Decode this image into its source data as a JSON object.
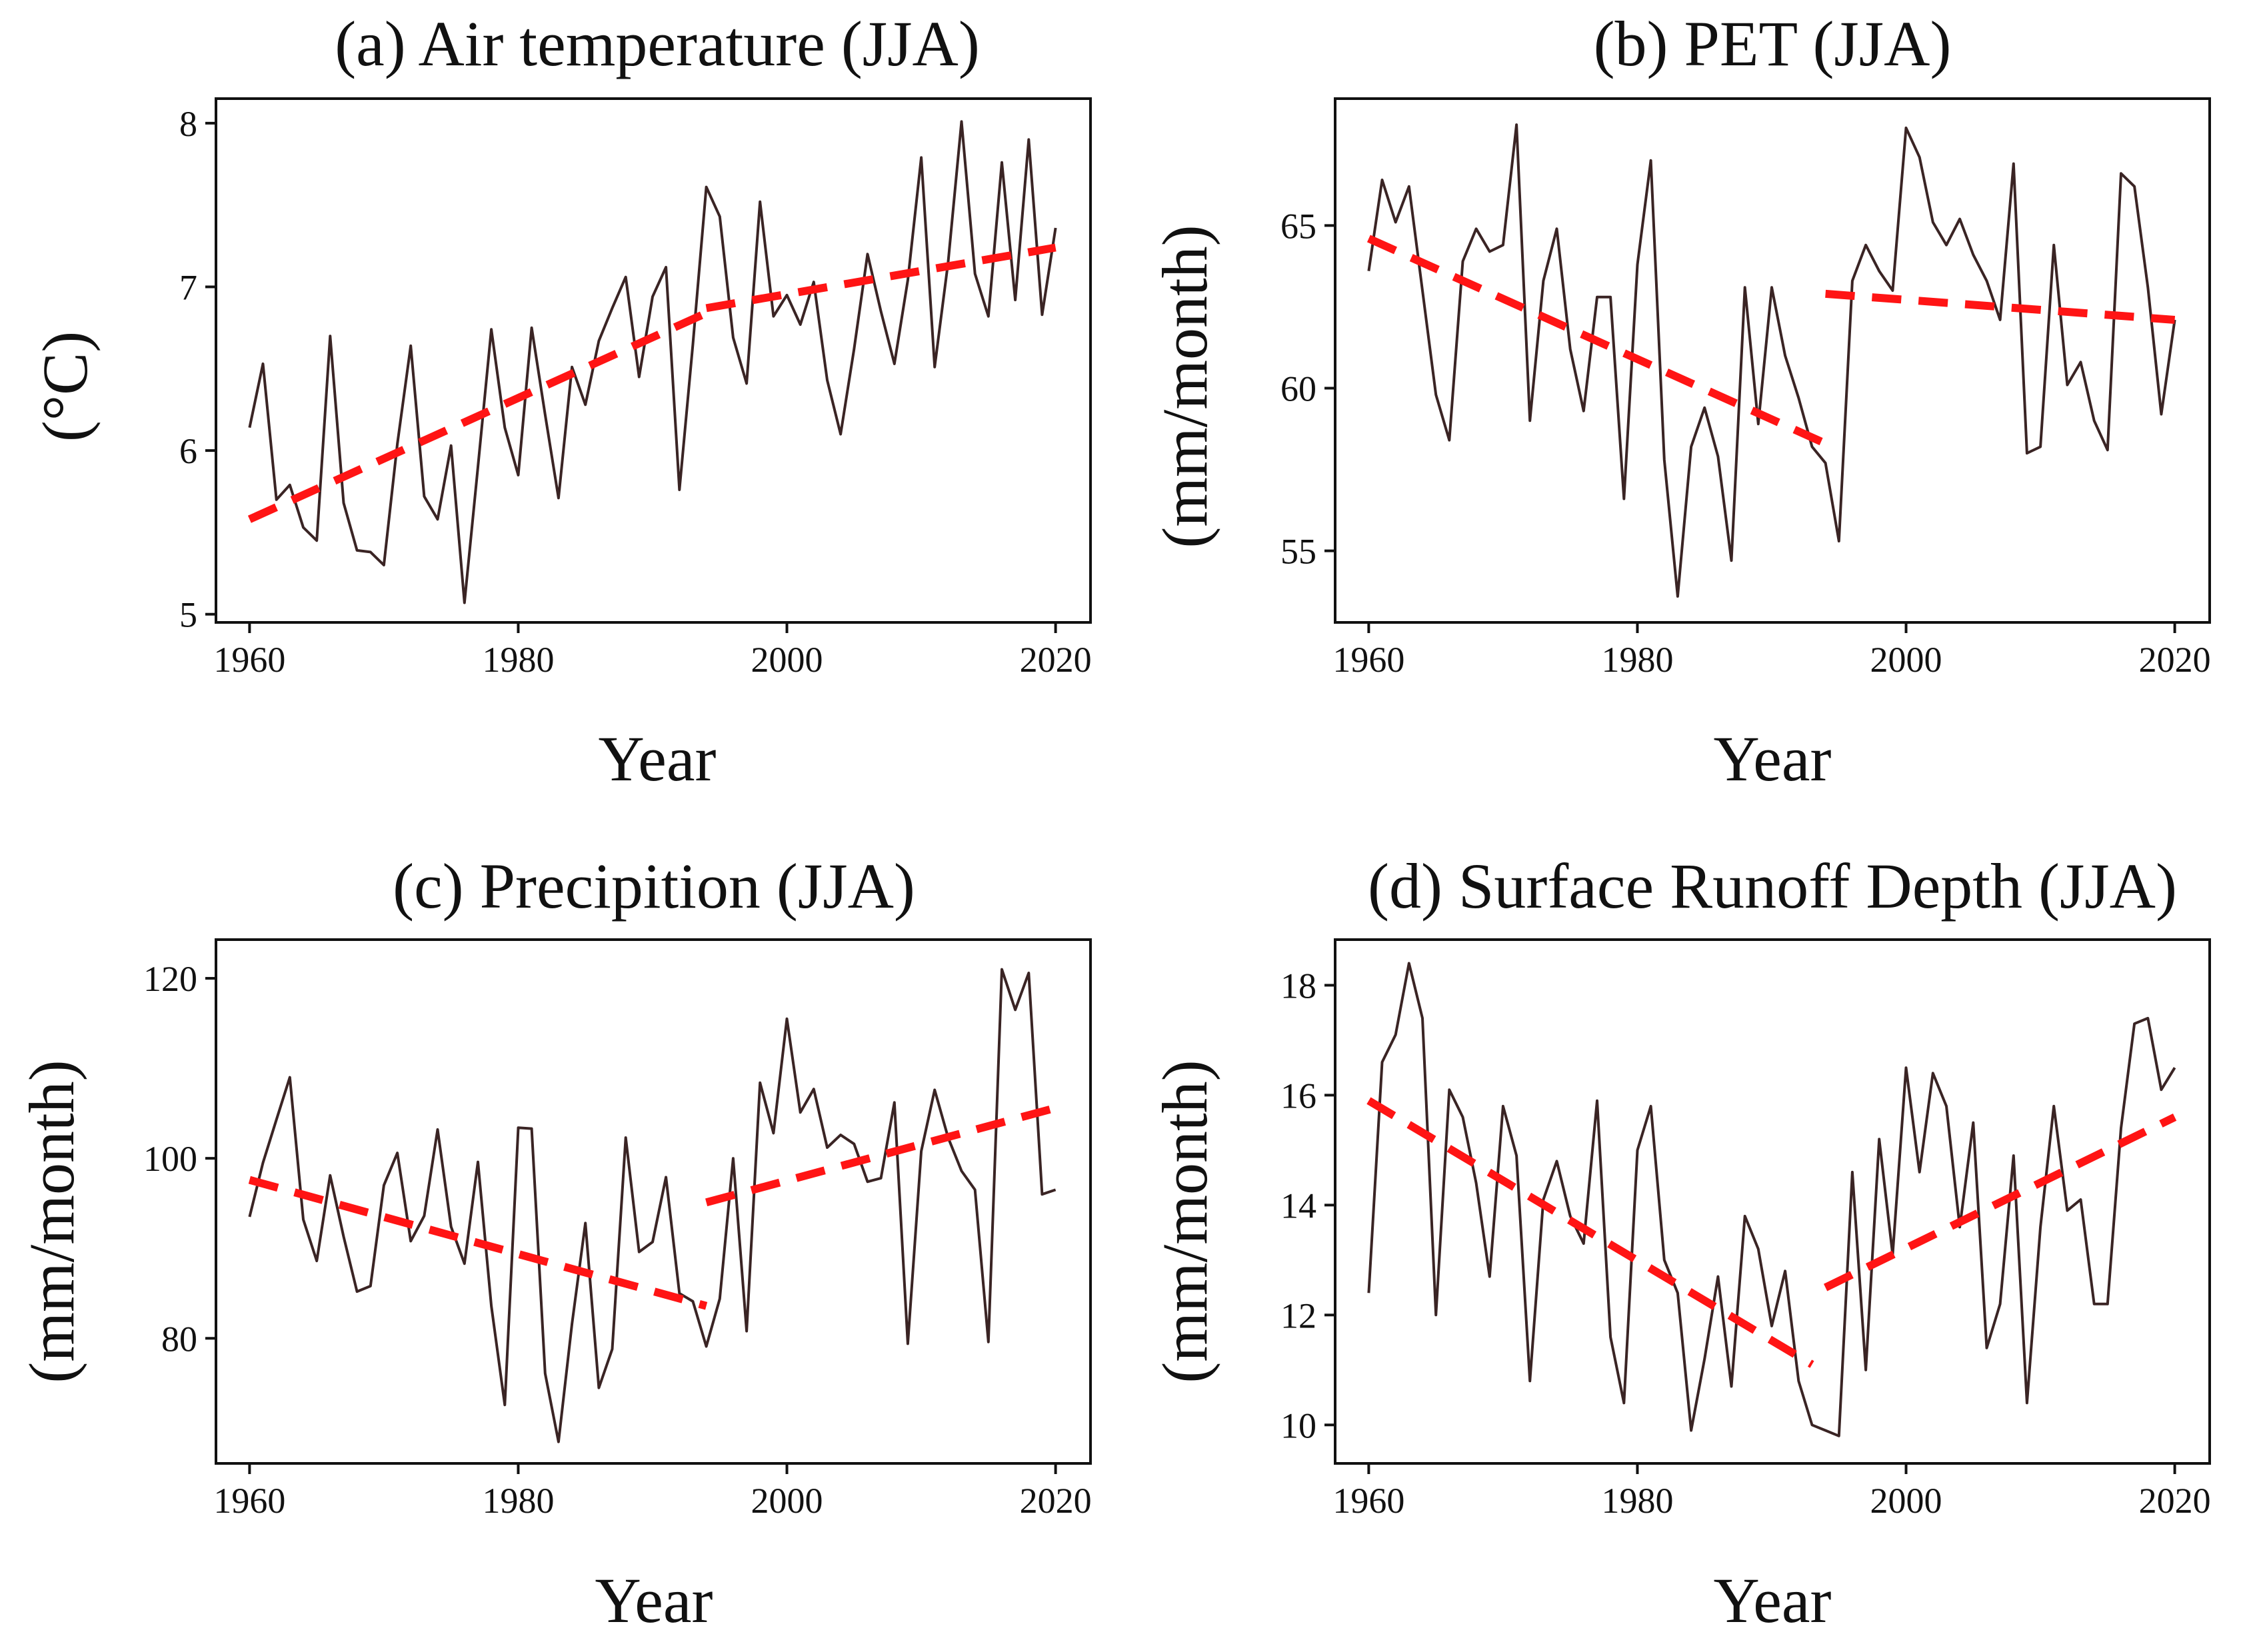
{
  "colors": {
    "series": "#3a2424",
    "trend": "#ff1414"
  },
  "chart_data": [
    {
      "type": "line",
      "title": "(a) Air temperature (JJA)",
      "xlabel": "Year",
      "ylabel": "(°C)",
      "xlim": [
        1957.5,
        2022.6
      ],
      "ylim": [
        4.95,
        8.15
      ],
      "xticks": [
        1960,
        1980,
        2000,
        2020
      ],
      "yticks": [
        5,
        6,
        7,
        8
      ],
      "x": [
        1960,
        1961,
        1962,
        1963,
        1964,
        1965,
        1966,
        1967,
        1968,
        1969,
        1970,
        1971,
        1972,
        1973,
        1974,
        1975,
        1976,
        1977,
        1978,
        1979,
        1980,
        1981,
        1982,
        1983,
        1984,
        1985,
        1986,
        1987,
        1988,
        1989,
        1990,
        1991,
        1992,
        1993,
        1994,
        1995,
        1996,
        1997,
        1998,
        1999,
        2000,
        2001,
        2002,
        2003,
        2004,
        2005,
        2006,
        2007,
        2008,
        2009,
        2010,
        2011,
        2012,
        2013,
        2014,
        2015,
        2016,
        2017,
        2018,
        2019,
        2020
      ],
      "values": [
        6.14,
        6.53,
        5.7,
        5.79,
        5.53,
        5.45,
        6.7,
        5.68,
        5.39,
        5.38,
        5.3,
        6.04,
        6.64,
        5.72,
        5.58,
        6.03,
        5.07,
        5.9,
        6.74,
        6.14,
        5.85,
        6.75,
        6.22,
        5.71,
        6.51,
        6.28,
        6.67,
        6.87,
        7.06,
        6.45,
        6.94,
        7.12,
        5.76,
        6.65,
        7.61,
        7.43,
        6.69,
        6.41,
        7.52,
        6.82,
        6.95,
        6.77,
        7.03,
        6.43,
        6.1,
        6.62,
        7.2,
        6.85,
        6.53,
        7.04,
        7.79,
        6.51,
        7.15,
        8.01,
        7.08,
        6.82,
        7.76,
        6.92,
        7.9,
        6.83,
        7.36
      ],
      "trends": [
        {
          "x": [
            1960,
            1994
          ],
          "y": [
            5.58,
            6.84
          ]
        },
        {
          "x": [
            1994,
            2020
          ],
          "y": [
            6.87,
            7.24
          ]
        }
      ]
    },
    {
      "type": "line",
      "title": "(b)  PET (JJA)",
      "xlabel": "Year",
      "ylabel": "(mm/month)",
      "xlim": [
        1957.5,
        2022.6
      ],
      "ylim": [
        52.8,
        68.9
      ],
      "xticks": [
        1960,
        1980,
        2000,
        2020
      ],
      "yticks": [
        55,
        60,
        65
      ],
      "x": [
        1960,
        1961,
        1962,
        1963,
        1964,
        1965,
        1966,
        1967,
        1968,
        1969,
        1970,
        1971,
        1972,
        1973,
        1974,
        1975,
        1976,
        1977,
        1978,
        1979,
        1980,
        1981,
        1982,
        1983,
        1984,
        1985,
        1986,
        1987,
        1988,
        1989,
        1990,
        1991,
        1992,
        1993,
        1994,
        1995,
        1996,
        1997,
        1998,
        1999,
        2000,
        2001,
        2002,
        2003,
        2004,
        2005,
        2006,
        2007,
        2008,
        2009,
        2010,
        2011,
        2012,
        2013,
        2014,
        2015,
        2016,
        2017,
        2018,
        2019,
        2020
      ],
      "values": [
        63.6,
        66.4,
        65.1,
        66.2,
        63.0,
        59.8,
        58.4,
        63.9,
        64.9,
        64.2,
        64.4,
        68.1,
        59.0,
        63.3,
        64.9,
        61.2,
        59.3,
        62.8,
        62.8,
        56.6,
        63.8,
        67.0,
        57.8,
        53.6,
        58.2,
        59.4,
        57.9,
        54.7,
        63.1,
        58.9,
        63.1,
        61.0,
        59.7,
        58.2,
        57.7,
        55.3,
        63.3,
        64.4,
        63.6,
        63.0,
        68.0,
        67.1,
        65.1,
        64.4,
        65.2,
        64.1,
        63.3,
        62.1,
        66.9,
        58.0,
        58.2,
        64.4,
        60.1,
        60.8,
        59.0,
        58.1,
        66.6,
        66.2,
        63.1,
        59.2,
        62.1
      ],
      "trends": [
        {
          "x": [
            1960,
            1994
          ],
          "y": [
            64.6,
            58.3
          ]
        },
        {
          "x": [
            1994,
            2020
          ],
          "y": [
            62.9,
            62.1
          ]
        }
      ]
    },
    {
      "type": "line",
      "title": "(c) Precipition (JJA)",
      "xlabel": "Year",
      "ylabel": "(mm/month)",
      "xlim": [
        1957.5,
        2022.6
      ],
      "ylim": [
        66.1,
        124.3
      ],
      "xticks": [
        1960,
        1980,
        2000,
        2020
      ],
      "yticks": [
        80,
        100,
        120
      ],
      "x": [
        1960,
        1961,
        1962,
        1963,
        1964,
        1965,
        1966,
        1967,
        1968,
        1969,
        1970,
        1971,
        1972,
        1973,
        1974,
        1975,
        1976,
        1977,
        1978,
        1979,
        1980,
        1981,
        1982,
        1983,
        1984,
        1985,
        1986,
        1987,
        1988,
        1989,
        1990,
        1991,
        1992,
        1993,
        1994,
        1995,
        1996,
        1997,
        1998,
        1999,
        2000,
        2001,
        2002,
        2003,
        2004,
        2005,
        2006,
        2007,
        2008,
        2009,
        2010,
        2011,
        2012,
        2013,
        2014,
        2015,
        2016,
        2017,
        2018,
        2019,
        2020
      ],
      "values": [
        93.5,
        99.5,
        104.3,
        109.0,
        93.2,
        88.6,
        98.1,
        91.3,
        85.2,
        85.8,
        97.0,
        100.6,
        90.8,
        93.6,
        103.2,
        92.4,
        88.3,
        99.6,
        83.6,
        72.6,
        103.4,
        103.3,
        76.1,
        68.5,
        81.6,
        92.8,
        74.5,
        78.8,
        102.3,
        89.6,
        90.7,
        97.9,
        85.0,
        84.1,
        79.1,
        84.4,
        100.0,
        80.8,
        108.4,
        102.8,
        115.5,
        105.1,
        107.7,
        101.2,
        102.6,
        101.6,
        97.4,
        97.8,
        106.2,
        79.4,
        100.8,
        107.6,
        102.3,
        98.6,
        96.5,
        79.6,
        121.0,
        116.5,
        120.6,
        96.0,
        96.5
      ],
      "trends": [
        {
          "x": [
            1960,
            1994
          ],
          "y": [
            97.6,
            83.6
          ]
        },
        {
          "x": [
            1994,
            2020
          ],
          "y": [
            95.1,
            105.6
          ]
        }
      ]
    },
    {
      "type": "line",
      "title": "(d) Surface Runoff Depth (JJA)",
      "xlabel": "Year",
      "ylabel": "(mm/month)",
      "xlim": [
        1957.5,
        2022.6
      ],
      "ylim": [
        9.3,
        18.83
      ],
      "xticks": [
        1960,
        1980,
        2000,
        2020
      ],
      "yticks": [
        10,
        12,
        14,
        16,
        18
      ],
      "x": [
        1960,
        1961,
        1962,
        1963,
        1964,
        1965,
        1966,
        1967,
        1968,
        1969,
        1970,
        1971,
        1972,
        1973,
        1974,
        1975,
        1976,
        1977,
        1978,
        1979,
        1980,
        1981,
        1982,
        1983,
        1984,
        1985,
        1986,
        1987,
        1988,
        1989,
        1990,
        1991,
        1992,
        1993,
        1994,
        1995,
        1996,
        1997,
        1998,
        1999,
        2000,
        2001,
        2002,
        2003,
        2004,
        2005,
        2006,
        2007,
        2008,
        2009,
        2010,
        2011,
        2012,
        2013,
        2014,
        2015,
        2016,
        2017,
        2018,
        2019,
        2020
      ],
      "values": [
        12.4,
        16.6,
        17.1,
        18.4,
        17.4,
        12.0,
        16.1,
        15.6,
        14.4,
        12.7,
        15.8,
        14.9,
        10.8,
        14.1,
        14.8,
        13.8,
        13.3,
        15.9,
        11.6,
        10.4,
        15.0,
        15.8,
        13.0,
        12.4,
        9.9,
        11.2,
        12.7,
        10.7,
        13.8,
        13.2,
        11.8,
        12.8,
        10.8,
        10.0,
        9.9,
        9.8,
        14.6,
        11.0,
        15.2,
        13.1,
        16.5,
        14.6,
        16.4,
        15.8,
        13.6,
        15.5,
        11.4,
        12.2,
        14.9,
        10.4,
        13.6,
        15.8,
        13.9,
        14.1,
        12.2,
        12.2,
        15.4,
        17.3,
        17.4,
        16.1,
        16.5
      ],
      "trends": [
        {
          "x": [
            1960,
            1993
          ],
          "y": [
            15.9,
            11.1
          ]
        },
        {
          "x": [
            1994,
            2020
          ],
          "y": [
            12.5,
            15.6
          ]
        }
      ]
    }
  ]
}
